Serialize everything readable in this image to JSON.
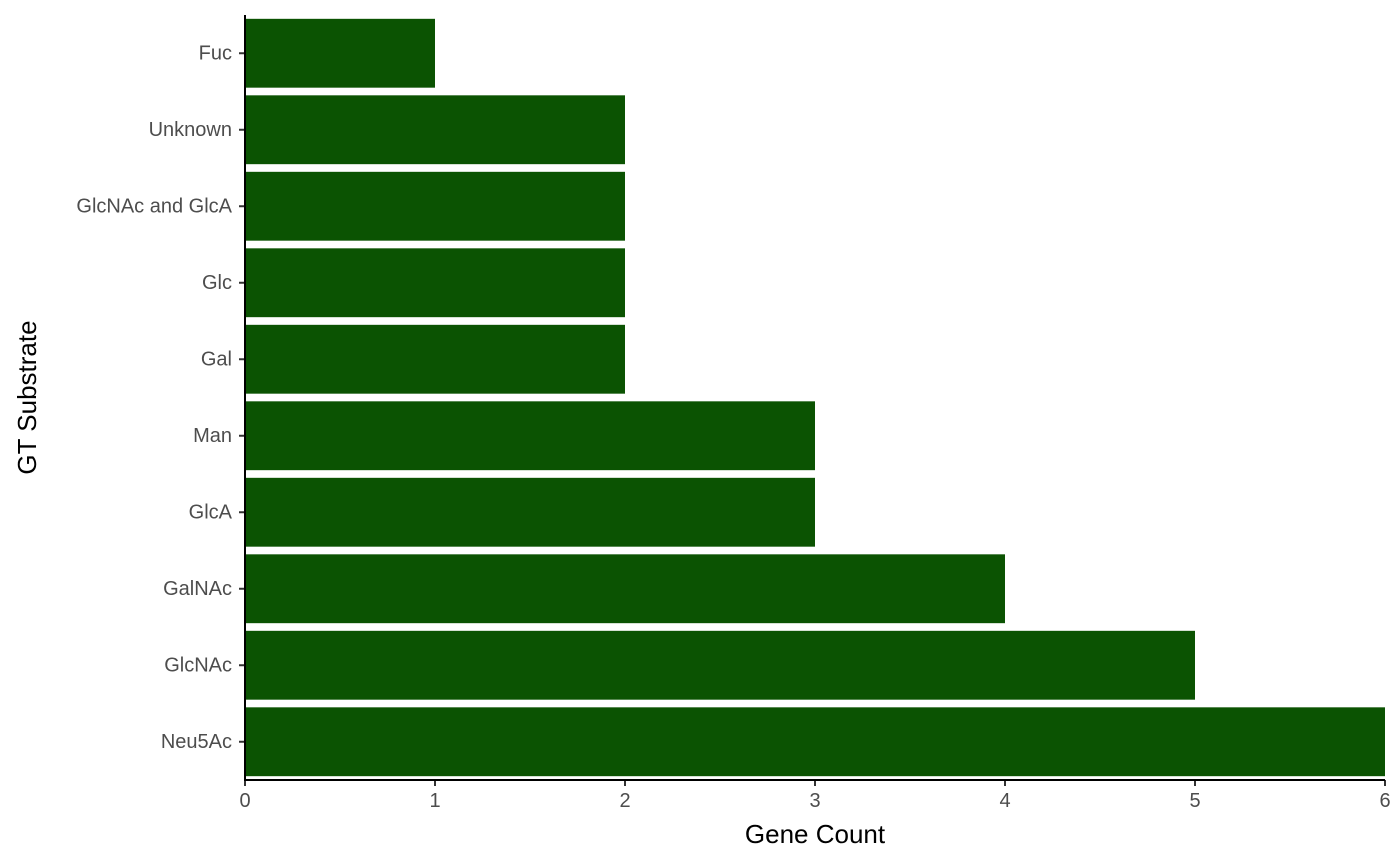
{
  "chart_data": {
    "type": "bar",
    "orientation": "horizontal",
    "title": "",
    "xlabel": "Gene Count",
    "ylabel": "GT Substrate",
    "categories": [
      "Fuc",
      "Unknown",
      "GlcNAc and GlcA",
      "Glc",
      "Gal",
      "Man",
      "GlcA",
      "GalNAc",
      "GlcNAc",
      "Neu5Ac"
    ],
    "values": [
      1,
      2,
      2,
      2,
      2,
      3,
      3,
      4,
      5,
      6
    ],
    "xlim": [
      0,
      6
    ],
    "xticks": [
      "0",
      "1",
      "2",
      "3",
      "4",
      "5",
      "6"
    ],
    "grid": false,
    "legend": "none",
    "bar_color": "#0b5302"
  }
}
